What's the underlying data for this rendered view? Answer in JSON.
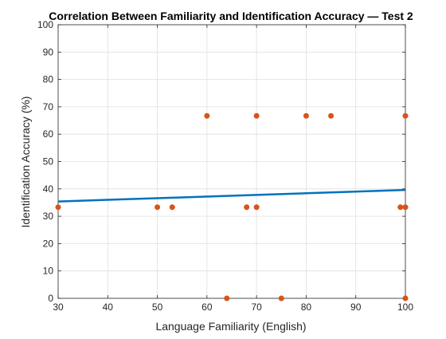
{
  "chart_data": {
    "type": "scatter",
    "title": "Correlation Between Familiarity and Identification Accuracy — Test 2",
    "xlabel": "Language Familiarity (English)",
    "ylabel": "Identification Accuracy (%)",
    "xlim": [
      30,
      100
    ],
    "ylim": [
      0,
      100
    ],
    "x_ticks": [
      30,
      40,
      50,
      60,
      70,
      80,
      90,
      100
    ],
    "y_ticks": [
      0,
      10,
      20,
      30,
      40,
      50,
      60,
      70,
      80,
      90,
      100
    ],
    "grid": true,
    "series": [
      {
        "kind": "points",
        "color": "#d95319",
        "x": [
          30,
          50,
          53,
          60,
          64,
          68,
          70,
          70,
          75,
          80,
          85,
          99,
          100,
          100,
          100
        ],
        "y": [
          33.3,
          33.3,
          33.3,
          66.7,
          0,
          33.3,
          66.7,
          33.3,
          0,
          66.7,
          66.7,
          33.3,
          33.3,
          66.7,
          0
        ]
      },
      {
        "kind": "fit-line",
        "color": "#0072bd",
        "x": [
          30,
          100
        ],
        "y": [
          35.4,
          39.6
        ]
      }
    ]
  }
}
